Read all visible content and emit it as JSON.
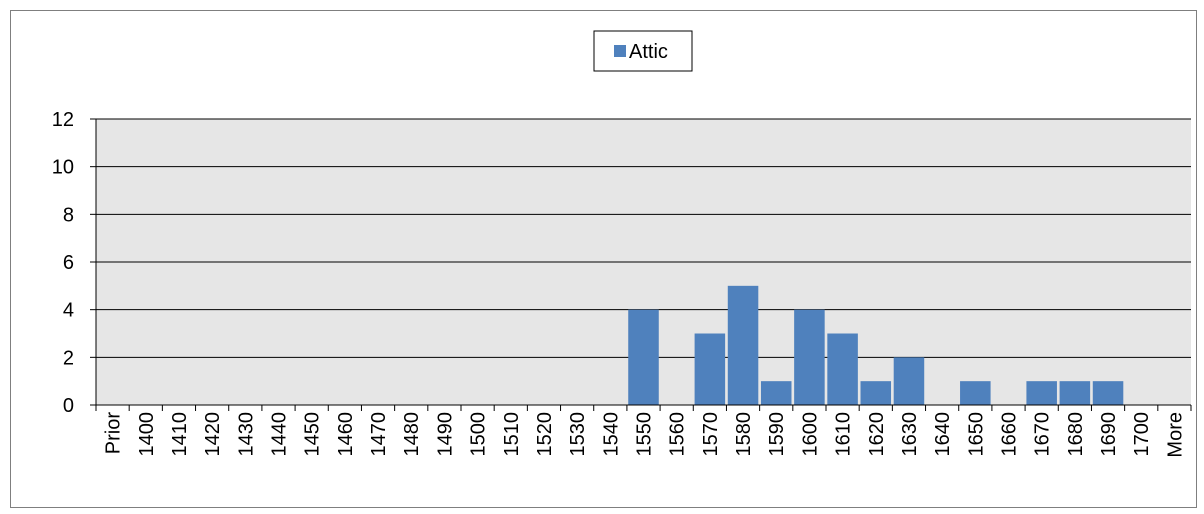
{
  "chart_data": {
    "type": "bar",
    "categories": [
      "Prior",
      "1400",
      "1410",
      "1420",
      "1430",
      "1440",
      "1450",
      "1460",
      "1470",
      "1480",
      "1490",
      "1500",
      "1510",
      "1520",
      "1530",
      "1540",
      "1550",
      "1560",
      "1570",
      "1580",
      "1590",
      "1600",
      "1610",
      "1620",
      "1630",
      "1640",
      "1650",
      "1660",
      "1670",
      "1680",
      "1690",
      "1700",
      "More"
    ],
    "series": [
      {
        "name": "Attic",
        "values": [
          0,
          0,
          0,
          0,
          0,
          0,
          0,
          0,
          0,
          0,
          0,
          0,
          0,
          0,
          0,
          0,
          4,
          0,
          3,
          5,
          1,
          4,
          3,
          1,
          2,
          0,
          1,
          0,
          1,
          1,
          1,
          0,
          0
        ]
      }
    ],
    "ylim": [
      0,
      12
    ],
    "yticks": [
      0,
      2,
      4,
      6,
      8,
      10,
      12
    ],
    "grid": true,
    "legend_position": "top-center",
    "colors": {
      "bar": "#4f81bd",
      "plot_background": "#e6e6e6",
      "gridline": "#000000",
      "frame_border": "#7f7f7f"
    }
  }
}
